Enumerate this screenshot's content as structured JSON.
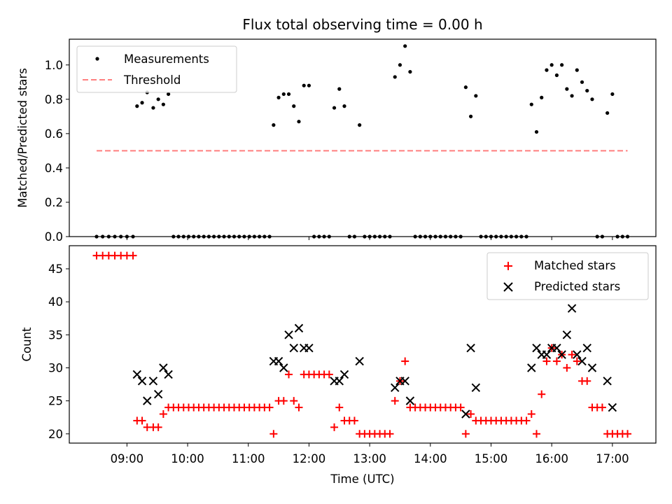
{
  "title": "Flux total observing time = 0.00 h",
  "colors": {
    "measurements": "#000000",
    "threshold": "#ff7f7f",
    "matched": "#ff0000",
    "predicted": "#000000"
  },
  "chart_data": [
    {
      "type": "scatter",
      "ylabel": "Matched/Predicted stars",
      "xlabel": "",
      "xlim": [
        "08:03",
        "17:43"
      ],
      "ylim": [
        0,
        1.15
      ],
      "yticks": [
        "0.0",
        "0.2",
        "0.4",
        "0.6",
        "0.8",
        "1.0"
      ],
      "grid": false,
      "legend_position": "top-left",
      "series": [
        {
          "name": "Measurements",
          "marker": "dot",
          "points": [
            [
              "08:30",
              0
            ],
            [
              "08:36",
              0
            ],
            [
              "08:42",
              0
            ],
            [
              "08:48",
              0
            ],
            [
              "08:54",
              0
            ],
            [
              "09:00",
              0
            ],
            [
              "09:06",
              0
            ],
            [
              "09:10",
              0.76
            ],
            [
              "09:15",
              0.78
            ],
            [
              "09:20",
              0.84
            ],
            [
              "09:26",
              0.75
            ],
            [
              "09:31",
              0.8
            ],
            [
              "09:36",
              0.77
            ],
            [
              "09:41",
              0.83
            ],
            [
              "09:46",
              0
            ],
            [
              "09:51",
              0
            ],
            [
              "09:56",
              0
            ],
            [
              "10:01",
              0
            ],
            [
              "10:06",
              0
            ],
            [
              "10:11",
              0
            ],
            [
              "10:16",
              0
            ],
            [
              "10:21",
              0
            ],
            [
              "10:26",
              0
            ],
            [
              "10:31",
              0
            ],
            [
              "10:36",
              0
            ],
            [
              "10:41",
              0
            ],
            [
              "10:46",
              0
            ],
            [
              "10:51",
              0
            ],
            [
              "10:56",
              0
            ],
            [
              "11:01",
              0
            ],
            [
              "11:06",
              0
            ],
            [
              "11:11",
              0
            ],
            [
              "11:16",
              0
            ],
            [
              "11:21",
              0
            ],
            [
              "11:25",
              0.65
            ],
            [
              "11:30",
              0.81
            ],
            [
              "11:35",
              0.83
            ],
            [
              "11:40",
              0.83
            ],
            [
              "11:45",
              0.76
            ],
            [
              "11:50",
              0.67
            ],
            [
              "11:55",
              0.88
            ],
            [
              "12:00",
              0.88
            ],
            [
              "12:05",
              0
            ],
            [
              "12:10",
              0
            ],
            [
              "12:15",
              0
            ],
            [
              "12:20",
              0
            ],
            [
              "12:25",
              0.75
            ],
            [
              "12:30",
              0.86
            ],
            [
              "12:35",
              0.76
            ],
            [
              "12:40",
              0
            ],
            [
              "12:45",
              0
            ],
            [
              "12:50",
              0.65
            ],
            [
              "12:55",
              0
            ],
            [
              "13:00",
              0
            ],
            [
              "13:05",
              0
            ],
            [
              "13:10",
              0
            ],
            [
              "13:15",
              0
            ],
            [
              "13:20",
              0
            ],
            [
              "13:25",
              0.93
            ],
            [
              "13:30",
              1.0
            ],
            [
              "13:35",
              1.11
            ],
            [
              "13:40",
              0.96
            ],
            [
              "13:45",
              0
            ],
            [
              "13:50",
              0
            ],
            [
              "13:55",
              0
            ],
            [
              "14:00",
              0
            ],
            [
              "14:05",
              0
            ],
            [
              "14:10",
              0
            ],
            [
              "14:15",
              0
            ],
            [
              "14:20",
              0
            ],
            [
              "14:25",
              0
            ],
            [
              "14:30",
              0
            ],
            [
              "14:35",
              0.87
            ],
            [
              "14:40",
              0.7
            ],
            [
              "14:45",
              0.82
            ],
            [
              "14:50",
              0
            ],
            [
              "14:55",
              0
            ],
            [
              "15:00",
              0
            ],
            [
              "15:05",
              0
            ],
            [
              "15:10",
              0
            ],
            [
              "15:15",
              0
            ],
            [
              "15:20",
              0
            ],
            [
              "15:25",
              0
            ],
            [
              "15:30",
              0
            ],
            [
              "15:35",
              0
            ],
            [
              "15:40",
              0.77
            ],
            [
              "15:45",
              0.61
            ],
            [
              "15:50",
              0.81
            ],
            [
              "15:55",
              0.97
            ],
            [
              "16:00",
              1.0
            ],
            [
              "16:05",
              0.94
            ],
            [
              "16:10",
              1.0
            ],
            [
              "16:15",
              0.86
            ],
            [
              "16:20",
              0.82
            ],
            [
              "16:25",
              0.97
            ],
            [
              "16:30",
              0.9
            ],
            [
              "16:35",
              0.85
            ],
            [
              "16:40",
              0.8
            ],
            [
              "16:45",
              0
            ],
            [
              "16:50",
              0
            ],
            [
              "16:55",
              0.72
            ],
            [
              "17:00",
              0.83
            ],
            [
              "17:05",
              0
            ],
            [
              "17:10",
              0
            ],
            [
              "17:15",
              0
            ]
          ]
        },
        {
          "name": "Threshold",
          "marker": "dashed-line",
          "points": [
            [
              "08:30",
              0.5
            ],
            [
              "17:15",
              0.5
            ]
          ]
        }
      ]
    },
    {
      "type": "scatter",
      "ylabel": "Count",
      "xlabel": "Time (UTC)",
      "xlim": [
        "08:03",
        "17:43"
      ],
      "ylim": [
        18.6,
        48.5
      ],
      "xticks": [
        "09:00",
        "10:00",
        "11:00",
        "12:00",
        "13:00",
        "14:00",
        "15:00",
        "16:00",
        "17:00"
      ],
      "yticks": [
        "20",
        "25",
        "30",
        "35",
        "40",
        "45"
      ],
      "grid": false,
      "legend_position": "top-right",
      "series": [
        {
          "name": "Matched stars",
          "marker": "plus",
          "points": [
            [
              "08:30",
              47
            ],
            [
              "08:36",
              47
            ],
            [
              "08:42",
              47
            ],
            [
              "08:48",
              47
            ],
            [
              "08:54",
              47
            ],
            [
              "09:00",
              47
            ],
            [
              "09:06",
              47
            ],
            [
              "09:10",
              22
            ],
            [
              "09:15",
              22
            ],
            [
              "09:20",
              21
            ],
            [
              "09:26",
              21
            ],
            [
              "09:31",
              21
            ],
            [
              "09:36",
              23
            ],
            [
              "09:41",
              24
            ],
            [
              "09:46",
              24
            ],
            [
              "09:51",
              24
            ],
            [
              "09:56",
              24
            ],
            [
              "10:01",
              24
            ],
            [
              "10:06",
              24
            ],
            [
              "10:11",
              24
            ],
            [
              "10:16",
              24
            ],
            [
              "10:21",
              24
            ],
            [
              "10:26",
              24
            ],
            [
              "10:31",
              24
            ],
            [
              "10:36",
              24
            ],
            [
              "10:41",
              24
            ],
            [
              "10:46",
              24
            ],
            [
              "10:51",
              24
            ],
            [
              "10:56",
              24
            ],
            [
              "11:01",
              24
            ],
            [
              "11:06",
              24
            ],
            [
              "11:11",
              24
            ],
            [
              "11:16",
              24
            ],
            [
              "11:21",
              24
            ],
            [
              "11:25",
              20
            ],
            [
              "11:30",
              25
            ],
            [
              "11:35",
              25
            ],
            [
              "11:40",
              29
            ],
            [
              "11:45",
              25
            ],
            [
              "11:50",
              24
            ],
            [
              "11:55",
              29
            ],
            [
              "12:00",
              29
            ],
            [
              "12:05",
              29
            ],
            [
              "12:10",
              29
            ],
            [
              "12:15",
              29
            ],
            [
              "12:20",
              29
            ],
            [
              "12:25",
              21
            ],
            [
              "12:30",
              24
            ],
            [
              "12:35",
              22
            ],
            [
              "12:40",
              22
            ],
            [
              "12:45",
              22
            ],
            [
              "12:50",
              20
            ],
            [
              "12:55",
              20
            ],
            [
              "13:00",
              20
            ],
            [
              "13:05",
              20
            ],
            [
              "13:10",
              20
            ],
            [
              "13:15",
              20
            ],
            [
              "13:20",
              20
            ],
            [
              "13:25",
              25
            ],
            [
              "13:30",
              28
            ],
            [
              "13:35",
              31
            ],
            [
              "13:40",
              24
            ],
            [
              "13:45",
              24
            ],
            [
              "13:50",
              24
            ],
            [
              "13:55",
              24
            ],
            [
              "14:00",
              24
            ],
            [
              "14:05",
              24
            ],
            [
              "14:10",
              24
            ],
            [
              "14:15",
              24
            ],
            [
              "14:20",
              24
            ],
            [
              "14:25",
              24
            ],
            [
              "14:30",
              24
            ],
            [
              "14:35",
              20
            ],
            [
              "14:40",
              23
            ],
            [
              "14:45",
              22
            ],
            [
              "14:50",
              22
            ],
            [
              "14:55",
              22
            ],
            [
              "15:00",
              22
            ],
            [
              "15:05",
              22
            ],
            [
              "15:10",
              22
            ],
            [
              "15:15",
              22
            ],
            [
              "15:20",
              22
            ],
            [
              "15:25",
              22
            ],
            [
              "15:30",
              22
            ],
            [
              "15:35",
              22
            ],
            [
              "15:40",
              23
            ],
            [
              "15:45",
              20
            ],
            [
              "15:50",
              26
            ],
            [
              "15:55",
              31
            ],
            [
              "16:00",
              33
            ],
            [
              "16:05",
              31
            ],
            [
              "16:10",
              32
            ],
            [
              "16:15",
              30
            ],
            [
              "16:20",
              32
            ],
            [
              "16:25",
              31
            ],
            [
              "16:30",
              28
            ],
            [
              "16:35",
              28
            ],
            [
              "16:40",
              24
            ],
            [
              "16:45",
              24
            ],
            [
              "16:50",
              24
            ],
            [
              "16:55",
              20
            ],
            [
              "17:00",
              20
            ],
            [
              "17:05",
              20
            ],
            [
              "17:10",
              20
            ],
            [
              "17:15",
              20
            ]
          ]
        },
        {
          "name": "Predicted stars",
          "marker": "x",
          "points": [
            [
              "09:10",
              29
            ],
            [
              "09:15",
              28
            ],
            [
              "09:20",
              25
            ],
            [
              "09:26",
              28
            ],
            [
              "09:31",
              26
            ],
            [
              "09:36",
              30
            ],
            [
              "09:41",
              29
            ],
            [
              "11:25",
              31
            ],
            [
              "11:30",
              31
            ],
            [
              "11:35",
              30
            ],
            [
              "11:40",
              35
            ],
            [
              "11:45",
              33
            ],
            [
              "11:50",
              36
            ],
            [
              "11:55",
              33
            ],
            [
              "12:00",
              33
            ],
            [
              "12:25",
              28
            ],
            [
              "12:30",
              28
            ],
            [
              "12:35",
              29
            ],
            [
              "12:50",
              31
            ],
            [
              "13:25",
              27
            ],
            [
              "13:30",
              28
            ],
            [
              "13:35",
              28
            ],
            [
              "13:40",
              25
            ],
            [
              "14:35",
              23
            ],
            [
              "14:40",
              33
            ],
            [
              "14:45",
              27
            ],
            [
              "15:40",
              30
            ],
            [
              "15:45",
              33
            ],
            [
              "15:50",
              32
            ],
            [
              "15:55",
              32
            ],
            [
              "16:00",
              33
            ],
            [
              "16:05",
              33
            ],
            [
              "16:10",
              32
            ],
            [
              "16:15",
              35
            ],
            [
              "16:20",
              39
            ],
            [
              "16:25",
              32
            ],
            [
              "16:30",
              31
            ],
            [
              "16:35",
              33
            ],
            [
              "16:40",
              30
            ],
            [
              "16:55",
              28
            ],
            [
              "17:00",
              24
            ]
          ]
        }
      ]
    }
  ]
}
